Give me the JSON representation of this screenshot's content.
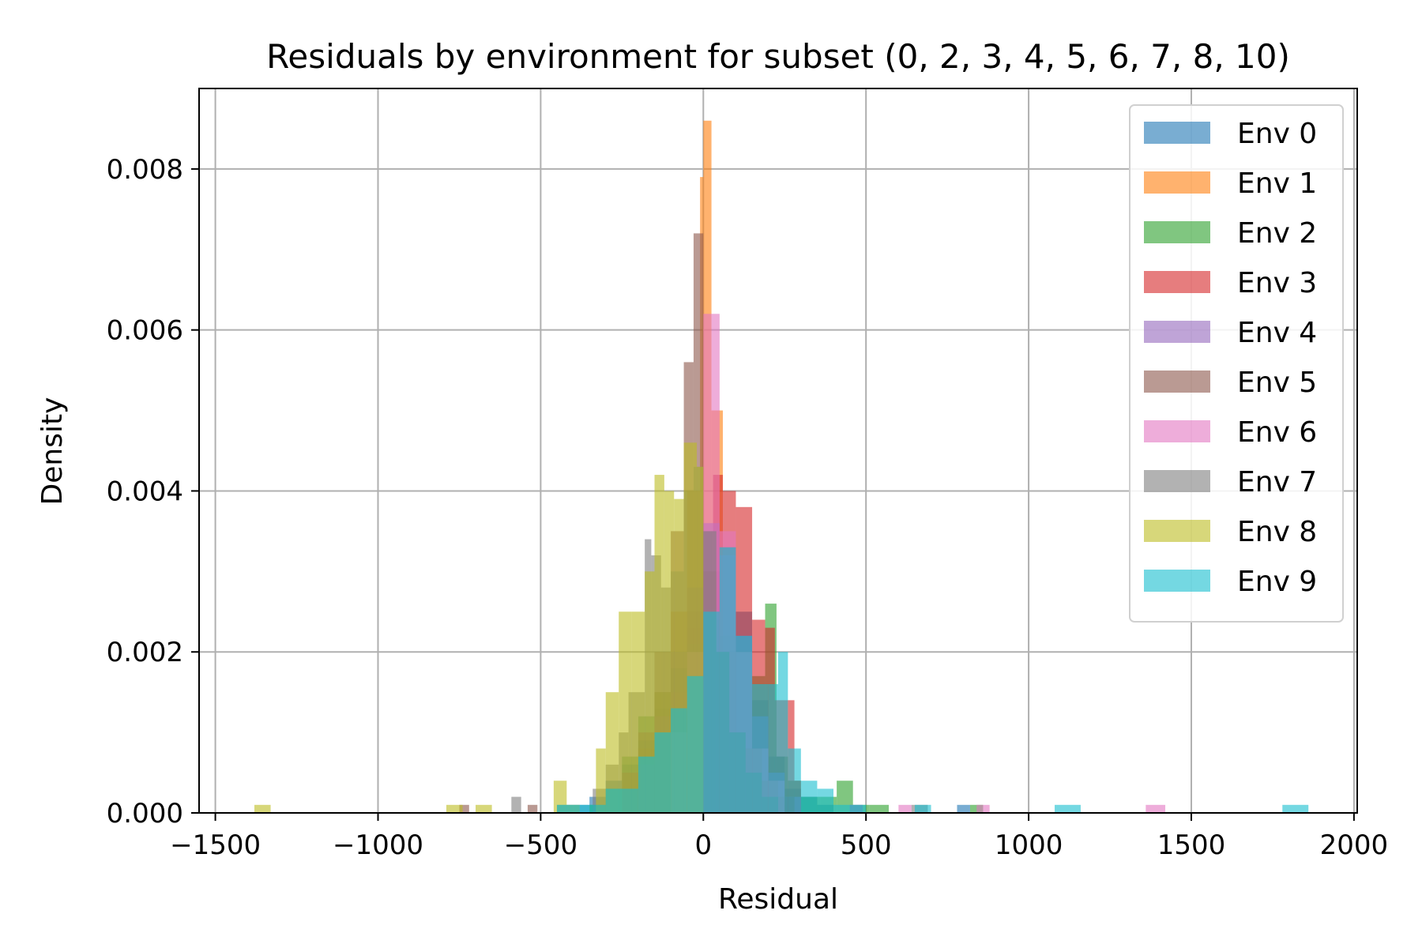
{
  "chart_data": {
    "type": "bar",
    "title": "Residuals by environment for subset (0, 2, 3, 4, 5, 6, 7, 8, 10)",
    "xlabel": "Residual",
    "ylabel": "Density",
    "xlim": [
      -1550,
      2010
    ],
    "ylim": [
      0,
      0.009
    ],
    "xticks": [
      -1500,
      -1000,
      -500,
      0,
      500,
      1000,
      1500,
      2000
    ],
    "xtick_labels": [
      "−1500",
      "−1000",
      "−500",
      "0",
      "500",
      "1000",
      "1500",
      "2000"
    ],
    "yticks": [
      0,
      0.002,
      0.004,
      0.006,
      0.008
    ],
    "ytick_labels": [
      "0.000",
      "0.002",
      "0.004",
      "0.006",
      "0.008"
    ],
    "grid": true,
    "legend_position": "top-right",
    "bar_opacity": 0.6,
    "series": [
      {
        "name": "Env 0",
        "color": "#1f77b4",
        "bins": [
          [
            -450,
            -400,
            0.0001
          ],
          [
            -400,
            -350,
            0.0001
          ],
          [
            -350,
            -300,
            0.0002
          ],
          [
            -300,
            -250,
            0.0004
          ],
          [
            -250,
            -200,
            0.0006
          ],
          [
            -200,
            -150,
            0.0009
          ],
          [
            -150,
            -100,
            0.0013
          ],
          [
            -100,
            -50,
            0.0018
          ],
          [
            -50,
            0,
            0.0023
          ],
          [
            0,
            50,
            0.003
          ],
          [
            50,
            100,
            0.0033
          ],
          [
            100,
            150,
            0.0025
          ],
          [
            150,
            200,
            0.0014
          ],
          [
            200,
            250,
            0.0007
          ],
          [
            250,
            300,
            0.0003
          ],
          [
            300,
            350,
            0.0002
          ],
          [
            350,
            400,
            0.0001
          ],
          [
            780,
            820,
            0.0001
          ]
        ]
      },
      {
        "name": "Env 1",
        "color": "#ff7f0e",
        "bins": [
          [
            -250,
            -200,
            0.0003
          ],
          [
            -200,
            -150,
            0.0008
          ],
          [
            -150,
            -100,
            0.0015
          ],
          [
            -100,
            -50,
            0.0025
          ],
          [
            -50,
            -10,
            0.004
          ],
          [
            -10,
            0,
            0.0079
          ],
          [
            0,
            25,
            0.0086
          ],
          [
            25,
            60,
            0.005
          ],
          [
            60,
            100,
            0.002
          ],
          [
            100,
            150,
            0.0008
          ],
          [
            150,
            200,
            0.0003
          ],
          [
            200,
            250,
            0.0001
          ]
        ]
      },
      {
        "name": "Env 2",
        "color": "#2ca02c",
        "bins": [
          [
            -350,
            -300,
            0.0001
          ],
          [
            -300,
            -250,
            0.0003
          ],
          [
            -250,
            -200,
            0.0007
          ],
          [
            -200,
            -150,
            0.0012
          ],
          [
            -150,
            -100,
            0.0015
          ],
          [
            -100,
            -50,
            0.0018
          ],
          [
            -50,
            0,
            0.0021
          ],
          [
            0,
            50,
            0.0024
          ],
          [
            50,
            100,
            0.0022
          ],
          [
            100,
            150,
            0.002
          ],
          [
            150,
            190,
            0.0017
          ],
          [
            190,
            225,
            0.0026
          ],
          [
            225,
            260,
            0.0007
          ],
          [
            260,
            300,
            0.0004
          ],
          [
            300,
            360,
            0.0002
          ],
          [
            360,
            410,
            0.0002
          ],
          [
            410,
            460,
            0.0004
          ],
          [
            460,
            510,
            0.0001
          ],
          [
            510,
            570,
            0.0001
          ],
          [
            820,
            860,
            0.0001
          ]
        ]
      },
      {
        "name": "Env 3",
        "color": "#d62728",
        "bins": [
          [
            -100,
            -50,
            0.0015
          ],
          [
            -50,
            0,
            0.0025
          ],
          [
            0,
            30,
            0.0035
          ],
          [
            30,
            60,
            0.0042
          ],
          [
            60,
            100,
            0.004
          ],
          [
            100,
            150,
            0.0038
          ],
          [
            150,
            190,
            0.0024
          ],
          [
            190,
            220,
            0.0023
          ],
          [
            220,
            260,
            0.0014
          ],
          [
            260,
            280,
            0.0014
          ],
          [
            280,
            300,
            0.0004
          ]
        ]
      },
      {
        "name": "Env 4",
        "color": "#9467bd",
        "bins": [
          [
            -200,
            -150,
            0.0006
          ],
          [
            -150,
            -100,
            0.0012
          ],
          [
            -100,
            -50,
            0.002
          ],
          [
            -50,
            0,
            0.0028
          ],
          [
            0,
            50,
            0.0036
          ],
          [
            50,
            100,
            0.0032
          ],
          [
            100,
            150,
            0.0022
          ],
          [
            150,
            200,
            0.0012
          ],
          [
            200,
            250,
            0.0005
          ],
          [
            250,
            300,
            0.0002
          ],
          [
            450,
            490,
            0.0001
          ]
        ]
      },
      {
        "name": "Env 5",
        "color": "#8c564b",
        "bins": [
          [
            -750,
            -720,
            0.0001
          ],
          [
            -540,
            -510,
            0.0001
          ],
          [
            -250,
            -200,
            0.0005
          ],
          [
            -200,
            -150,
            0.001
          ],
          [
            -150,
            -100,
            0.002
          ],
          [
            -100,
            -60,
            0.0035
          ],
          [
            -60,
            -30,
            0.0056
          ],
          [
            -30,
            0,
            0.0072
          ],
          [
            0,
            40,
            0.003
          ],
          [
            40,
            80,
            0.002
          ],
          [
            80,
            130,
            0.001
          ],
          [
            130,
            180,
            0.0008
          ],
          [
            180,
            230,
            0.0004
          ],
          [
            230,
            280,
            0.0002
          ]
        ]
      },
      {
        "name": "Env 6",
        "color": "#e377c2",
        "bins": [
          [
            -100,
            -50,
            0.001
          ],
          [
            -50,
            0,
            0.002
          ],
          [
            0,
            25,
            0.0062
          ],
          [
            25,
            50,
            0.0062
          ],
          [
            50,
            100,
            0.0035
          ],
          [
            100,
            150,
            0.002
          ],
          [
            150,
            200,
            0.0008
          ],
          [
            200,
            250,
            0.0004
          ],
          [
            600,
            640,
            0.0001
          ],
          [
            840,
            880,
            0.0001
          ],
          [
            1360,
            1420,
            0.0001
          ]
        ]
      },
      {
        "name": "Env 7",
        "color": "#7f7f7f",
        "bins": [
          [
            -590,
            -560,
            0.0002
          ],
          [
            -340,
            -320,
            0.0003
          ],
          [
            -320,
            -300,
            0.0003
          ],
          [
            -300,
            -260,
            0.0006
          ],
          [
            -260,
            -230,
            0.001
          ],
          [
            -230,
            -180,
            0.0015
          ],
          [
            -180,
            -160,
            0.0034
          ],
          [
            -160,
            -130,
            0.0032
          ],
          [
            -130,
            -100,
            0.0028
          ],
          [
            -100,
            -60,
            0.003
          ],
          [
            -60,
            -30,
            0.004
          ],
          [
            -30,
            0,
            0.0043
          ],
          [
            0,
            40,
            0.0035
          ],
          [
            40,
            80,
            0.002
          ],
          [
            80,
            130,
            0.001
          ],
          [
            130,
            180,
            0.0005
          ],
          [
            180,
            230,
            0.0002
          ],
          [
            640,
            690,
            0.0001
          ]
        ]
      },
      {
        "name": "Env 8",
        "color": "#bcbd22",
        "bins": [
          [
            -1380,
            -1330,
            0.0001
          ],
          [
            -790,
            -740,
            0.0001
          ],
          [
            -700,
            -650,
            0.0001
          ],
          [
            -460,
            -420,
            0.0004
          ],
          [
            -420,
            -380,
            0.0001
          ],
          [
            -330,
            -300,
            0.0008
          ],
          [
            -300,
            -260,
            0.0015
          ],
          [
            -260,
            -220,
            0.0025
          ],
          [
            -220,
            -180,
            0.0025
          ],
          [
            -180,
            -150,
            0.003
          ],
          [
            -150,
            -120,
            0.0042
          ],
          [
            -120,
            -90,
            0.004
          ],
          [
            -90,
            -60,
            0.0039
          ],
          [
            -60,
            -20,
            0.0046
          ],
          [
            -20,
            0,
            0.0043
          ]
        ]
      },
      {
        "name": "Env 9",
        "color": "#17becf",
        "bins": [
          [
            -450,
            -400,
            0.0001
          ],
          [
            -400,
            -300,
            0.0001
          ],
          [
            -300,
            -200,
            0.0003
          ],
          [
            -200,
            -150,
            0.0007
          ],
          [
            -150,
            -100,
            0.001
          ],
          [
            -100,
            -50,
            0.0013
          ],
          [
            -50,
            0,
            0.0017
          ],
          [
            0,
            50,
            0.0025
          ],
          [
            50,
            100,
            0.0033
          ],
          [
            100,
            150,
            0.0022
          ],
          [
            150,
            200,
            0.0016
          ],
          [
            200,
            230,
            0.0016
          ],
          [
            230,
            260,
            0.002
          ],
          [
            260,
            300,
            0.0008
          ],
          [
            300,
            350,
            0.0004
          ],
          [
            350,
            400,
            0.0003
          ],
          [
            400,
            500,
            0.0001
          ],
          [
            650,
            700,
            0.0001
          ],
          [
            1080,
            1160,
            0.0001
          ],
          [
            1780,
            1860,
            0.0001
          ]
        ]
      }
    ]
  }
}
